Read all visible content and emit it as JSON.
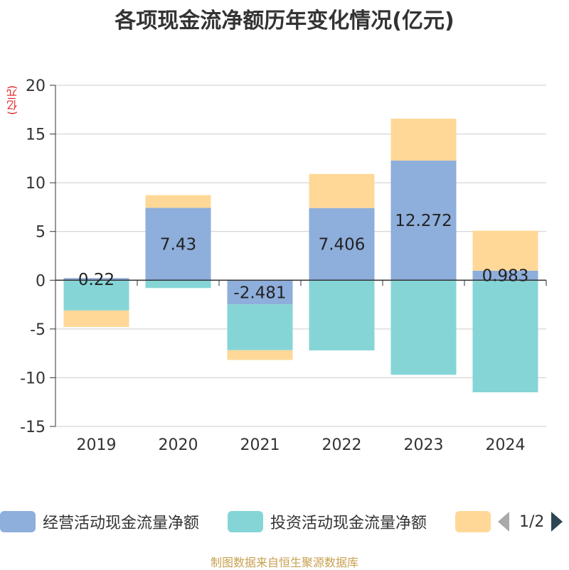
{
  "chart_data": {
    "type": "bar",
    "stacked": true,
    "title": "各项现金流净额历年变化情况(亿元)",
    "ylabel": "(亿元)",
    "categories": [
      "2019",
      "2020",
      "2021",
      "2022",
      "2023",
      "2024"
    ],
    "ylim": [
      -15,
      20
    ],
    "yticks": [
      20,
      15,
      10,
      5,
      0,
      -5,
      -10,
      -15
    ],
    "grid": true,
    "series": [
      {
        "name": "经营活动现金流量净额",
        "color": "#8eaedb",
        "values": [
          0.22,
          7.43,
          -2.481,
          7.406,
          12.272,
          0.983
        ],
        "labels": [
          "0.22",
          "7.43",
          "-2.481",
          "7.406",
          "12.272",
          "0.983"
        ]
      },
      {
        "name": "投资活动现金流量净额",
        "color": "#85d5d6",
        "values": [
          -3.1,
          -0.8,
          -4.7,
          -7.2,
          -9.7,
          -11.5
        ]
      },
      {
        "name": "",
        "color": "#ffd898",
        "values": [
          -1.7,
          1.3,
          -1.0,
          3.5,
          4.3,
          4.1
        ]
      }
    ]
  },
  "legend": {
    "items": [
      {
        "label": "经营活动现金流量净额",
        "color": "#8eaedb"
      },
      {
        "label": "投资活动现金流量净额",
        "color": "#85d5d6"
      },
      {
        "label": "",
        "color": "#ffd898"
      }
    ],
    "page": "1/2"
  },
  "source": "制图数据来自恒生聚源数据库"
}
